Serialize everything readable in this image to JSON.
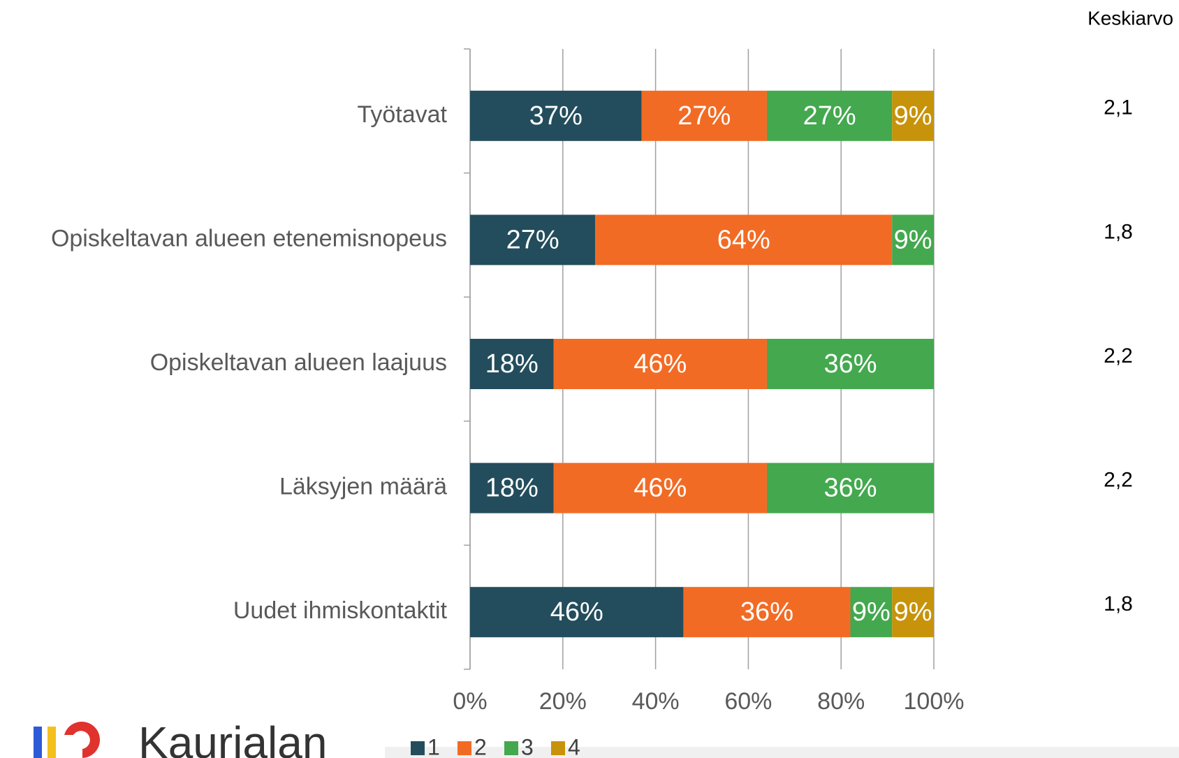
{
  "chart_data": {
    "type": "stacked_bar_horizontal",
    "categories": [
      "Työtavat",
      "Opiskeltavan alueen etenemisnopeus",
      "Opiskeltavan alueen laajuus",
      "Läksyjen määrä",
      "Uudet ihmiskontaktit"
    ],
    "series": [
      {
        "name": "1",
        "color": "#234d5c",
        "values": [
          37,
          27,
          18,
          18,
          46
        ],
        "value_labels": [
          "37%",
          "27%",
          "18%",
          "18%",
          "46%"
        ]
      },
      {
        "name": "2",
        "color": "#f26b24",
        "values": [
          27,
          64,
          46,
          46,
          36
        ],
        "value_labels": [
          "27%",
          "64%",
          "46%",
          "46%",
          "36%"
        ]
      },
      {
        "name": "3",
        "color": "#44a84f",
        "values": [
          27,
          9,
          36,
          36,
          9
        ],
        "value_labels": [
          "27%",
          "9%",
          "36%",
          "36%",
          "9%"
        ]
      },
      {
        "name": "4",
        "color": "#c7930a",
        "values": [
          9,
          null,
          null,
          null,
          9
        ],
        "value_labels": [
          "9%",
          null,
          null,
          null,
          "9%"
        ]
      }
    ],
    "xlim": [
      0,
      100
    ],
    "xticks": [
      {
        "value": 0,
        "label": "0%"
      },
      {
        "value": 20,
        "label": "20%"
      },
      {
        "value": 40,
        "label": "40%"
      },
      {
        "value": 60,
        "label": "60%"
      },
      {
        "value": 80,
        "label": "80%"
      },
      {
        "value": 100,
        "label": "100%"
      }
    ],
    "grid": true,
    "legend": "bottom",
    "averages": {
      "title": "Keskiarvo",
      "values": [
        2.1,
        1.8,
        2.2,
        2.2,
        1.8
      ],
      "value_labels": [
        "2,1",
        "1,8",
        "2,2",
        "2,2",
        "1,8"
      ]
    }
  },
  "logo": {
    "text": "Kaurialan"
  }
}
